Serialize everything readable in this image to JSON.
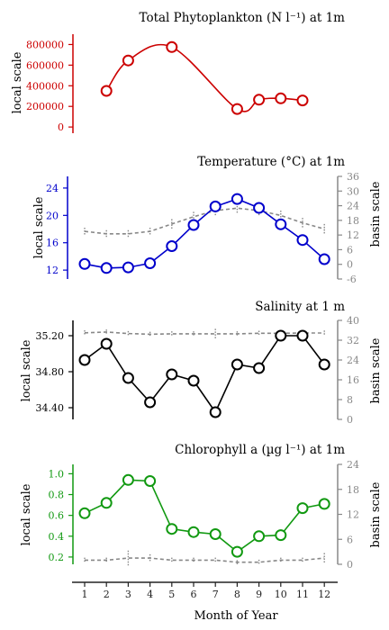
{
  "colors": {
    "phyto": "#cc0000",
    "temp": "#0000cc",
    "salinity": "#000000",
    "chl": "#119911",
    "basin": "#888888",
    "axis_black": "#222222"
  },
  "xaxis": {
    "label": "Month of Year",
    "ticks": [
      "1",
      "2",
      "3",
      "4",
      "5",
      "6",
      "7",
      "8",
      "9",
      "10",
      "11",
      "12"
    ]
  },
  "chart_data": [
    {
      "type": "line",
      "title": "Total Phytoplankton (N l⁻¹) at 1m",
      "ylabel": "local scale",
      "ylim": [
        -60000,
        900000
      ],
      "yticks": [
        0,
        200000,
        400000,
        600000,
        800000
      ],
      "ytick_labels": [
        "0",
        "200000",
        "400000",
        "600000",
        "800000"
      ],
      "series": [
        {
          "x": [
            2,
            3,
            5,
            8,
            9,
            10,
            11
          ],
          "values": [
            350000,
            645000,
            775000,
            175000,
            265000,
            278000,
            258000
          ]
        }
      ]
    },
    {
      "type": "line",
      "title": "Temperature (°C) at 1m",
      "ylabel": "local scale",
      "ylabel_right": "basin scale",
      "ylim": [
        10.7,
        25.7
      ],
      "yticks": [
        12,
        16,
        20,
        24
      ],
      "ytick_labels": [
        "12",
        "16",
        "20",
        "24"
      ],
      "ylim_right": [
        -6,
        36
      ],
      "yticks_right": [
        -6,
        0,
        6,
        12,
        18,
        24,
        30,
        36
      ],
      "ytick_labels_right": [
        "-6",
        "0",
        "6",
        "12",
        "18",
        "24",
        "30",
        "36"
      ],
      "series": [
        {
          "x": [
            1,
            2,
            3,
            4,
            5,
            6,
            7,
            8,
            9,
            10,
            11,
            12
          ],
          "values": [
            12.9,
            12.3,
            12.4,
            13.0,
            15.5,
            18.6,
            21.3,
            22.4,
            21.1,
            18.7,
            16.4,
            13.6
          ]
        },
        {
          "axis": "right",
          "style": "dashed",
          "x": [
            1,
            2,
            3,
            4,
            5,
            6,
            7,
            8,
            9,
            10,
            11,
            12
          ],
          "values": [
            13.5,
            12.5,
            12.5,
            13.5,
            16.5,
            19.5,
            22.0,
            23.0,
            22.0,
            20.0,
            17.0,
            14.5
          ],
          "spread": [
            1.5,
            1.5,
            1.5,
            1.5,
            2.0,
            2.0,
            2.0,
            2.0,
            2.0,
            2.0,
            2.0,
            2.0
          ]
        }
      ]
    },
    {
      "type": "line",
      "title": "Salinity at 1 m",
      "ylabel": "local scale",
      "ylabel_right": "basin scale",
      "ylim": [
        34.27,
        35.37
      ],
      "yticks": [
        34.4,
        34.8,
        35.2
      ],
      "ytick_labels": [
        "34.40",
        "34.80",
        "35.20"
      ],
      "ylim_right": [
        0,
        40
      ],
      "yticks_right": [
        0,
        8,
        16,
        24,
        32,
        40
      ],
      "ytick_labels_right": [
        "0",
        "8",
        "16",
        "24",
        "32",
        "40"
      ],
      "series": [
        {
          "x": [
            1,
            2,
            3,
            4,
            5,
            6,
            7,
            8,
            9,
            10,
            11,
            12
          ],
          "values": [
            34.93,
            35.11,
            34.73,
            34.46,
            34.77,
            34.7,
            34.35,
            34.88,
            34.84,
            35.2,
            35.2,
            34.88
          ]
        },
        {
          "axis": "right",
          "style": "dashed",
          "x": [
            1,
            2,
            3,
            4,
            5,
            6,
            7,
            8,
            9,
            10,
            11,
            12
          ],
          "values": [
            35.0,
            35.3,
            34.7,
            34.4,
            34.6,
            34.6,
            34.6,
            34.6,
            34.8,
            34.8,
            34.9,
            34.9
          ],
          "spread": [
            1.0,
            1.0,
            1.0,
            1.0,
            1.0,
            1.0,
            2.0,
            1.0,
            1.0,
            1.0,
            1.0,
            1.0
          ]
        }
      ]
    },
    {
      "type": "line",
      "title": "Chlorophyll a (µg l⁻¹) at 1m",
      "ylabel": "local scale",
      "ylabel_right": "basin scale",
      "ylim": [
        0.13,
        1.09
      ],
      "yticks": [
        0.2,
        0.4,
        0.6,
        0.8,
        1.0
      ],
      "ytick_labels": [
        "0.2",
        "0.4",
        "0.6",
        "0.8",
        "1.0"
      ],
      "ylim_right": [
        0,
        24
      ],
      "yticks_right": [
        0,
        6,
        12,
        18,
        24
      ],
      "ytick_labels_right": [
        "0",
        "6",
        "12",
        "18",
        "24"
      ],
      "series": [
        {
          "x": [
            1,
            2,
            3,
            4,
            5,
            6,
            7,
            8,
            9,
            10,
            11,
            12
          ],
          "values": [
            0.62,
            0.72,
            0.94,
            0.93,
            0.47,
            0.44,
            0.42,
            0.25,
            0.4,
            0.41,
            0.67,
            0.71
          ]
        },
        {
          "axis": "right",
          "style": "dashed",
          "x": [
            1,
            2,
            3,
            4,
            5,
            6,
            7,
            8,
            9,
            10,
            11,
            12
          ],
          "values": [
            1.0,
            1.0,
            1.5,
            1.5,
            1.0,
            1.0,
            1.0,
            0.5,
            0.5,
            1.0,
            1.0,
            1.5
          ],
          "spread": [
            0.6,
            0.6,
            1.8,
            0.9,
            0.6,
            0.6,
            0.6,
            0.5,
            0.6,
            0.6,
            0.6,
            1.2
          ]
        }
      ]
    }
  ]
}
